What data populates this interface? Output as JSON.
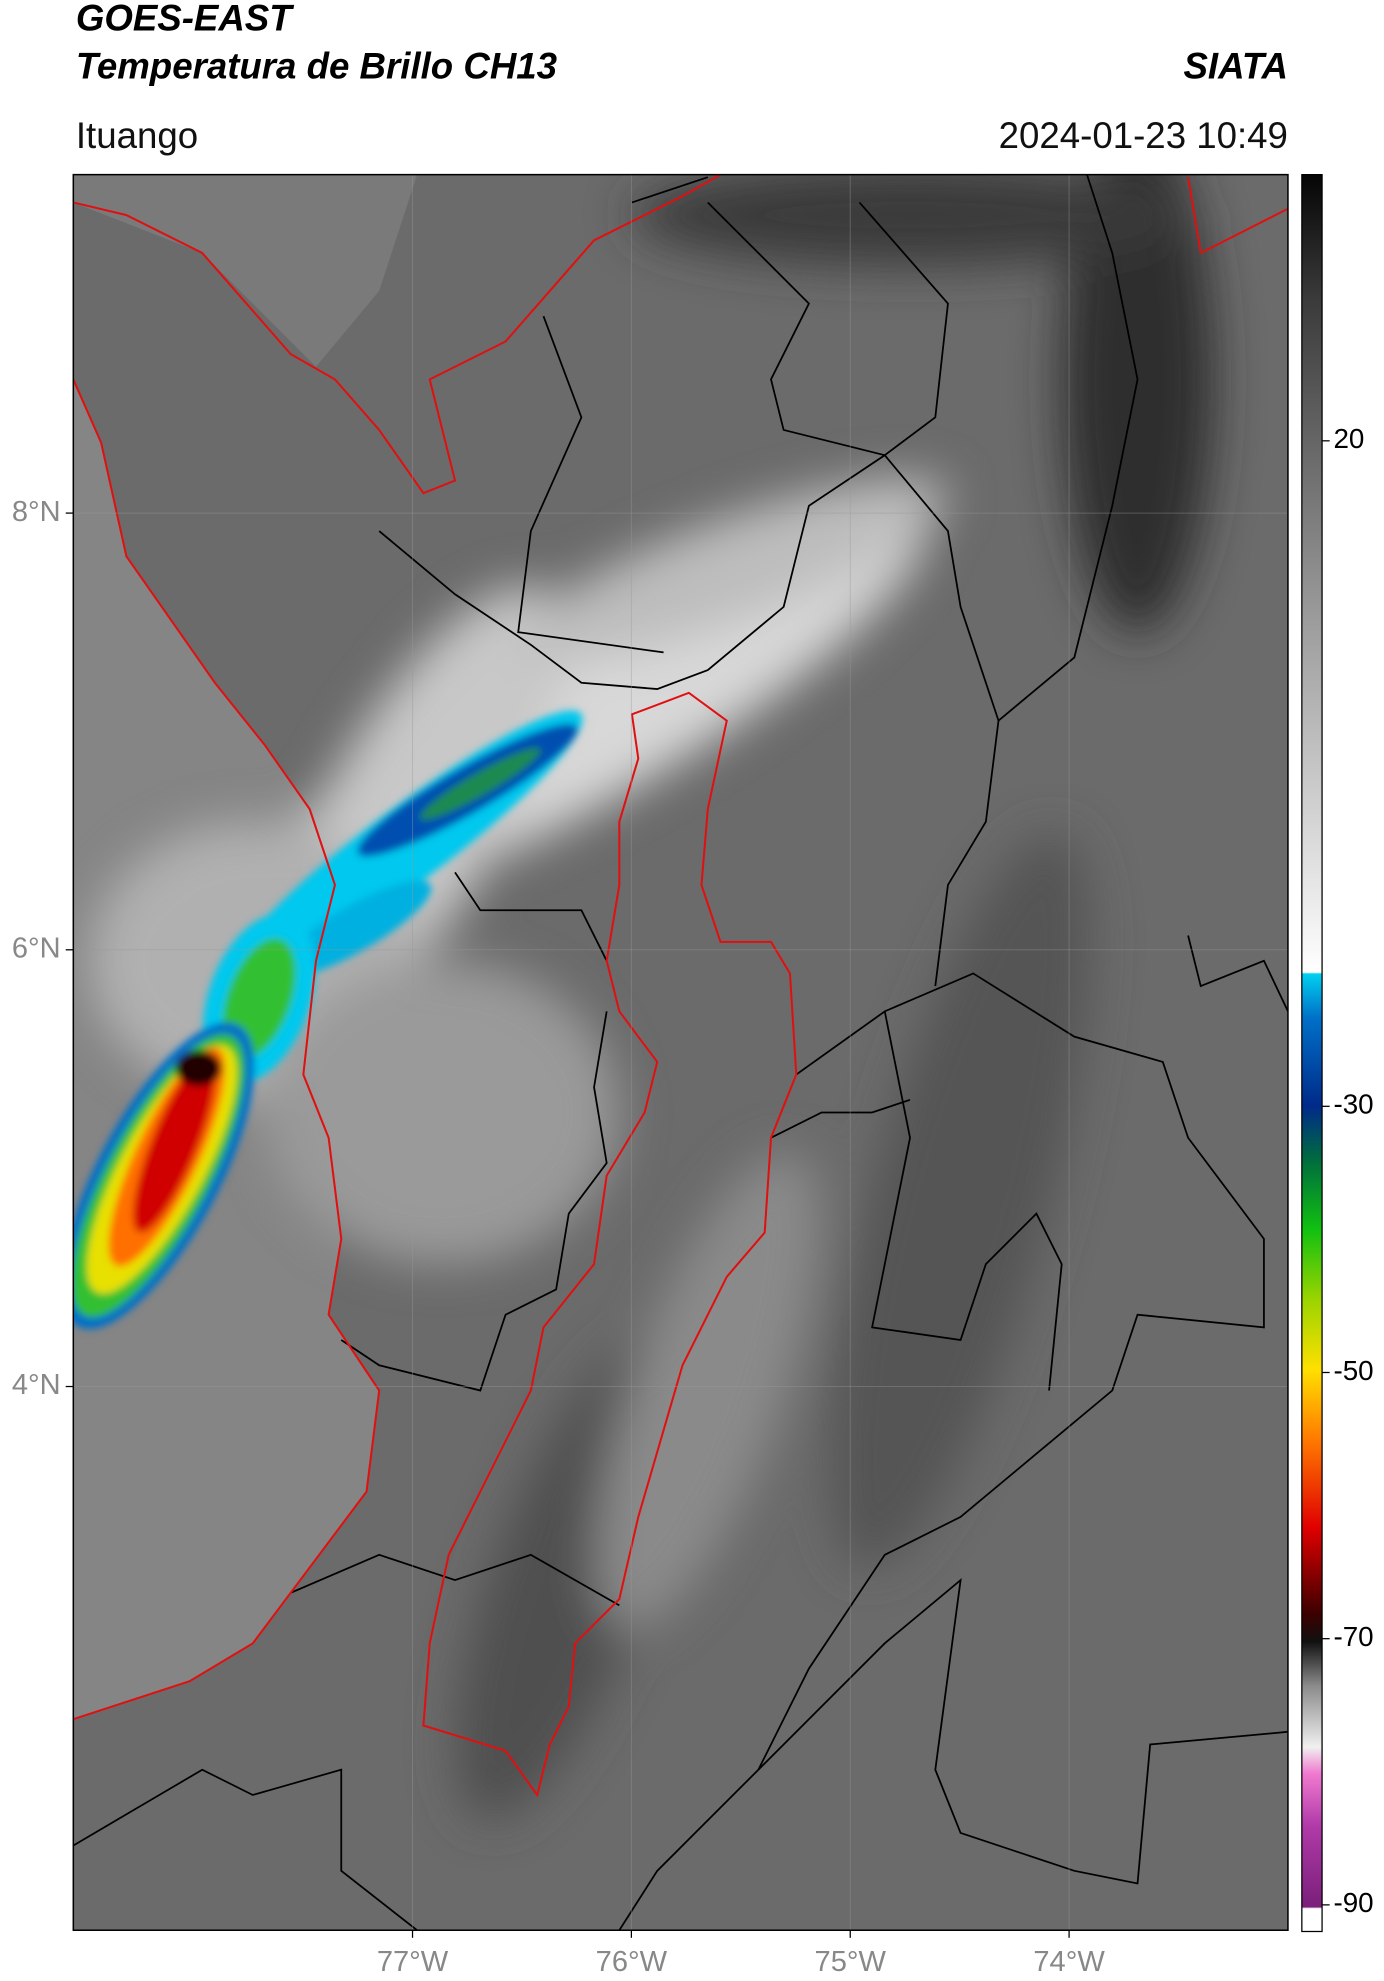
{
  "header": {
    "title": "GOES-EAST",
    "subtitle": "Temperatura de Brillo CH13",
    "source": "SIATA",
    "location": "Ituango",
    "datetime": "2024-01-23 10:49"
  },
  "map": {
    "xlim": [
      -78.55,
      -73.0
    ],
    "ylim": [
      1.51,
      9.55
    ],
    "xticks": [
      {
        "value": -77,
        "label": "77°W"
      },
      {
        "value": -76,
        "label": "76°W"
      },
      {
        "value": -75,
        "label": "75°W"
      },
      {
        "value": -74,
        "label": "74°W"
      }
    ],
    "yticks": [
      {
        "value": 8,
        "label": "8°N"
      },
      {
        "value": 6,
        "label": "6°N"
      },
      {
        "value": 4,
        "label": "4°N"
      }
    ],
    "grid": true
  },
  "colorbar": {
    "lim": [
      -92,
      40
    ],
    "ticks": [
      20,
      -30,
      -50,
      -70,
      -90
    ]
  }
}
